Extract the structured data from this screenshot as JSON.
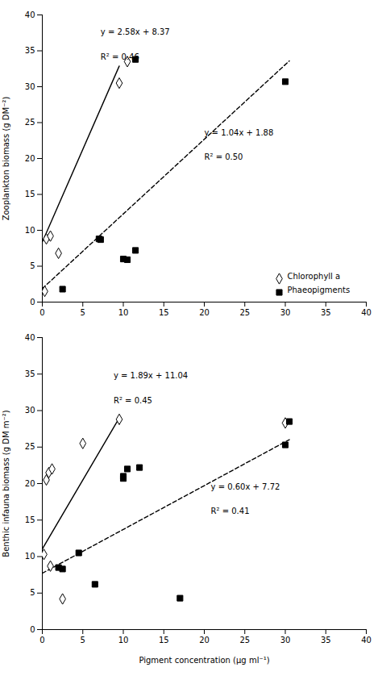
{
  "chart_data": [
    {
      "type": "scatter",
      "y_label": "Zooplankton biomass (g DM⁻²)",
      "xlim": [
        0,
        40
      ],
      "ylim": [
        0,
        40
      ],
      "xticks": [
        0,
        5,
        10,
        15,
        20,
        25,
        30,
        35,
        40
      ],
      "yticks": [
        0,
        5,
        10,
        15,
        20,
        25,
        30,
        35,
        40
      ],
      "legend": "lower right",
      "series": [
        {
          "name": "Chlorophyll a",
          "type": "scatter",
          "marker": "open_diamond",
          "color": "black",
          "x": [
            0.3,
            0.5,
            1.0,
            2.0,
            9.5,
            10.5
          ],
          "values": [
            1.5,
            8.8,
            9.2,
            6.8,
            30.5,
            33.5
          ]
        },
        {
          "name": "Phaeopigments",
          "type": "scatter",
          "marker": "square",
          "color": "black",
          "x": [
            2.5,
            7.0,
            7.2,
            10.0,
            10.5,
            11.5,
            30.0,
            11.5
          ],
          "values": [
            1.8,
            8.8,
            8.7,
            6.0,
            5.9,
            7.2,
            30.7,
            33.8
          ]
        },
        {
          "type": "line",
          "line_style": "solid",
          "color": "black",
          "x": [
            0,
            9.5
          ],
          "values": [
            8.37,
            32.88
          ]
        },
        {
          "type": "line",
          "line_style": "dashed",
          "color": "black",
          "x": [
            0,
            30.5
          ],
          "values": [
            1.88,
            33.6
          ]
        }
      ],
      "annotations": [
        "y = 2.58x + 8.37",
        "R² = 0.46",
        "y = 1.04x + 1.88",
        "R² = 0.50"
      ]
    },
    {
      "type": "scatter",
      "x_label": "Pigment concentration (μg ml⁻¹)",
      "y_label": "Benthic infauna biomass (g DM m⁻²)",
      "xlim": [
        0,
        40
      ],
      "ylim": [
        0,
        40
      ],
      "xticks": [
        0,
        5,
        10,
        15,
        20,
        25,
        30,
        35,
        40
      ],
      "yticks": [
        0,
        5,
        10,
        15,
        20,
        25,
        30,
        35,
        40
      ],
      "series": [
        {
          "type": "scatter",
          "marker": "open_diamond",
          "color": "black",
          "x": [
            0.2,
            0.5,
            0.8,
            1.0,
            1.2,
            2.5,
            5.0,
            9.5,
            30.0
          ],
          "values": [
            10.3,
            20.5,
            21.5,
            8.7,
            22.0,
            4.2,
            25.5,
            28.8,
            28.3
          ]
        },
        {
          "type": "scatter",
          "marker": "square",
          "color": "black",
          "x": [
            2.0,
            2.5,
            4.5,
            6.5,
            10.0,
            10.0,
            10.5,
            12.0,
            17.0,
            30.0,
            30.5
          ],
          "values": [
            8.5,
            8.3,
            10.5,
            6.2,
            21.0,
            20.7,
            22.0,
            22.2,
            4.3,
            25.3,
            28.5
          ]
        },
        {
          "type": "line",
          "line_style": "solid",
          "color": "black",
          "x": [
            0,
            9.5
          ],
          "values": [
            11.04,
            28.995
          ]
        },
        {
          "type": "line",
          "line_style": "dashed",
          "color": "black",
          "x": [
            0,
            30.5
          ],
          "values": [
            7.72,
            26.02
          ]
        }
      ],
      "annotations": [
        "y = 1.89x + 11.04",
        "R² = 0.45",
        "y = 0.60x + 7.72",
        "R² = 0.41"
      ]
    }
  ]
}
